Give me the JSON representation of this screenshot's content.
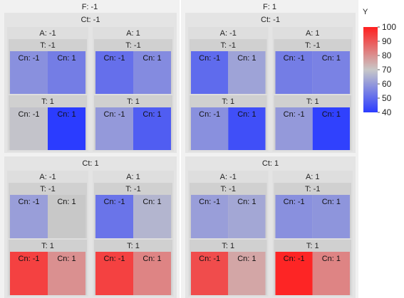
{
  "chart_data": {
    "type": "heatmap",
    "title": "",
    "color_variable": "Y",
    "color_scale": {
      "min": 40,
      "max": 100,
      "mid": 70,
      "low_color": "#2b3cff",
      "mid_color": "#c8c8c8",
      "high_color": "#ff1f1f",
      "ticks": [
        40,
        50,
        60,
        70,
        80,
        90,
        100
      ]
    },
    "facet_levels": {
      "F": [
        "F: -1",
        "F: 1"
      ],
      "Ct": [
        "Ct: -1",
        "Ct: 1"
      ],
      "A": [
        "A: -1",
        "A: 1"
      ],
      "T": [
        "T: -1",
        "T: 1"
      ],
      "Cn": [
        "Cn: -1",
        "Cn: 1"
      ]
    },
    "cells": [
      {
        "F": -1,
        "Ct": -1,
        "A": -1,
        "T": -1,
        "Cn": -1,
        "Y": 58
      },
      {
        "F": -1,
        "Ct": -1,
        "A": -1,
        "T": -1,
        "Cn": 1,
        "Y": 54
      },
      {
        "F": -1,
        "Ct": -1,
        "A": -1,
        "T": 1,
        "Cn": -1,
        "Y": 69
      },
      {
        "F": -1,
        "Ct": -1,
        "A": -1,
        "T": 1,
        "Cn": 1,
        "Y": 40
      },
      {
        "F": -1,
        "Ct": -1,
        "A": 1,
        "T": -1,
        "Cn": -1,
        "Y": 51
      },
      {
        "F": -1,
        "Ct": -1,
        "A": 1,
        "T": -1,
        "Cn": 1,
        "Y": 57
      },
      {
        "F": -1,
        "Ct": -1,
        "A": 1,
        "T": 1,
        "Cn": -1,
        "Y": 60
      },
      {
        "F": -1,
        "Ct": -1,
        "A": 1,
        "T": 1,
        "Cn": 1,
        "Y": 47
      },
      {
        "F": 1,
        "Ct": -1,
        "A": -1,
        "T": -1,
        "Cn": -1,
        "Y": 50
      },
      {
        "F": 1,
        "Ct": -1,
        "A": -1,
        "T": -1,
        "Cn": 1,
        "Y": 62
      },
      {
        "F": 1,
        "Ct": -1,
        "A": -1,
        "T": 1,
        "Cn": -1,
        "Y": 58
      },
      {
        "F": 1,
        "Ct": -1,
        "A": -1,
        "T": 1,
        "Cn": 1,
        "Y": 44
      },
      {
        "F": 1,
        "Ct": -1,
        "A": 1,
        "T": -1,
        "Cn": -1,
        "Y": 54
      },
      {
        "F": 1,
        "Ct": -1,
        "A": 1,
        "T": -1,
        "Cn": 1,
        "Y": 55
      },
      {
        "F": 1,
        "Ct": -1,
        "A": 1,
        "T": 1,
        "Cn": -1,
        "Y": 60
      },
      {
        "F": 1,
        "Ct": -1,
        "A": 1,
        "T": 1,
        "Cn": 1,
        "Y": 41
      },
      {
        "F": -1,
        "Ct": 1,
        "A": -1,
        "T": -1,
        "Cn": -1,
        "Y": 61
      },
      {
        "F": -1,
        "Ct": 1,
        "A": -1,
        "T": -1,
        "Cn": 1,
        "Y": 70
      },
      {
        "F": -1,
        "Ct": 1,
        "A": -1,
        "T": 1,
        "Cn": -1,
        "Y": 94
      },
      {
        "F": -1,
        "Ct": 1,
        "A": -1,
        "T": 1,
        "Cn": 1,
        "Y": 80
      },
      {
        "F": -1,
        "Ct": 1,
        "A": 1,
        "T": -1,
        "Cn": -1,
        "Y": 52
      },
      {
        "F": -1,
        "Ct": 1,
        "A": 1,
        "T": -1,
        "Cn": 1,
        "Y": 66
      },
      {
        "F": -1,
        "Ct": 1,
        "A": 1,
        "T": 1,
        "Cn": -1,
        "Y": 94
      },
      {
        "F": -1,
        "Ct": 1,
        "A": 1,
        "T": 1,
        "Cn": 1,
        "Y": 82
      },
      {
        "F": 1,
        "Ct": 1,
        "A": -1,
        "T": -1,
        "Cn": -1,
        "Y": 61
      },
      {
        "F": 1,
        "Ct": 1,
        "A": -1,
        "T": -1,
        "Cn": 1,
        "Y": 63
      },
      {
        "F": 1,
        "Ct": 1,
        "A": -1,
        "T": 1,
        "Cn": -1,
        "Y": 92
      },
      {
        "F": 1,
        "Ct": 1,
        "A": -1,
        "T": 1,
        "Cn": 1,
        "Y": 76
      },
      {
        "F": 1,
        "Ct": 1,
        "A": 1,
        "T": -1,
        "Cn": -1,
        "Y": 58
      },
      {
        "F": 1,
        "Ct": 1,
        "A": 1,
        "T": -1,
        "Cn": 1,
        "Y": 59
      },
      {
        "F": 1,
        "Ct": 1,
        "A": 1,
        "T": 1,
        "Cn": -1,
        "Y": 99
      },
      {
        "F": 1,
        "Ct": 1,
        "A": 1,
        "T": 1,
        "Cn": 1,
        "Y": 82
      }
    ]
  }
}
